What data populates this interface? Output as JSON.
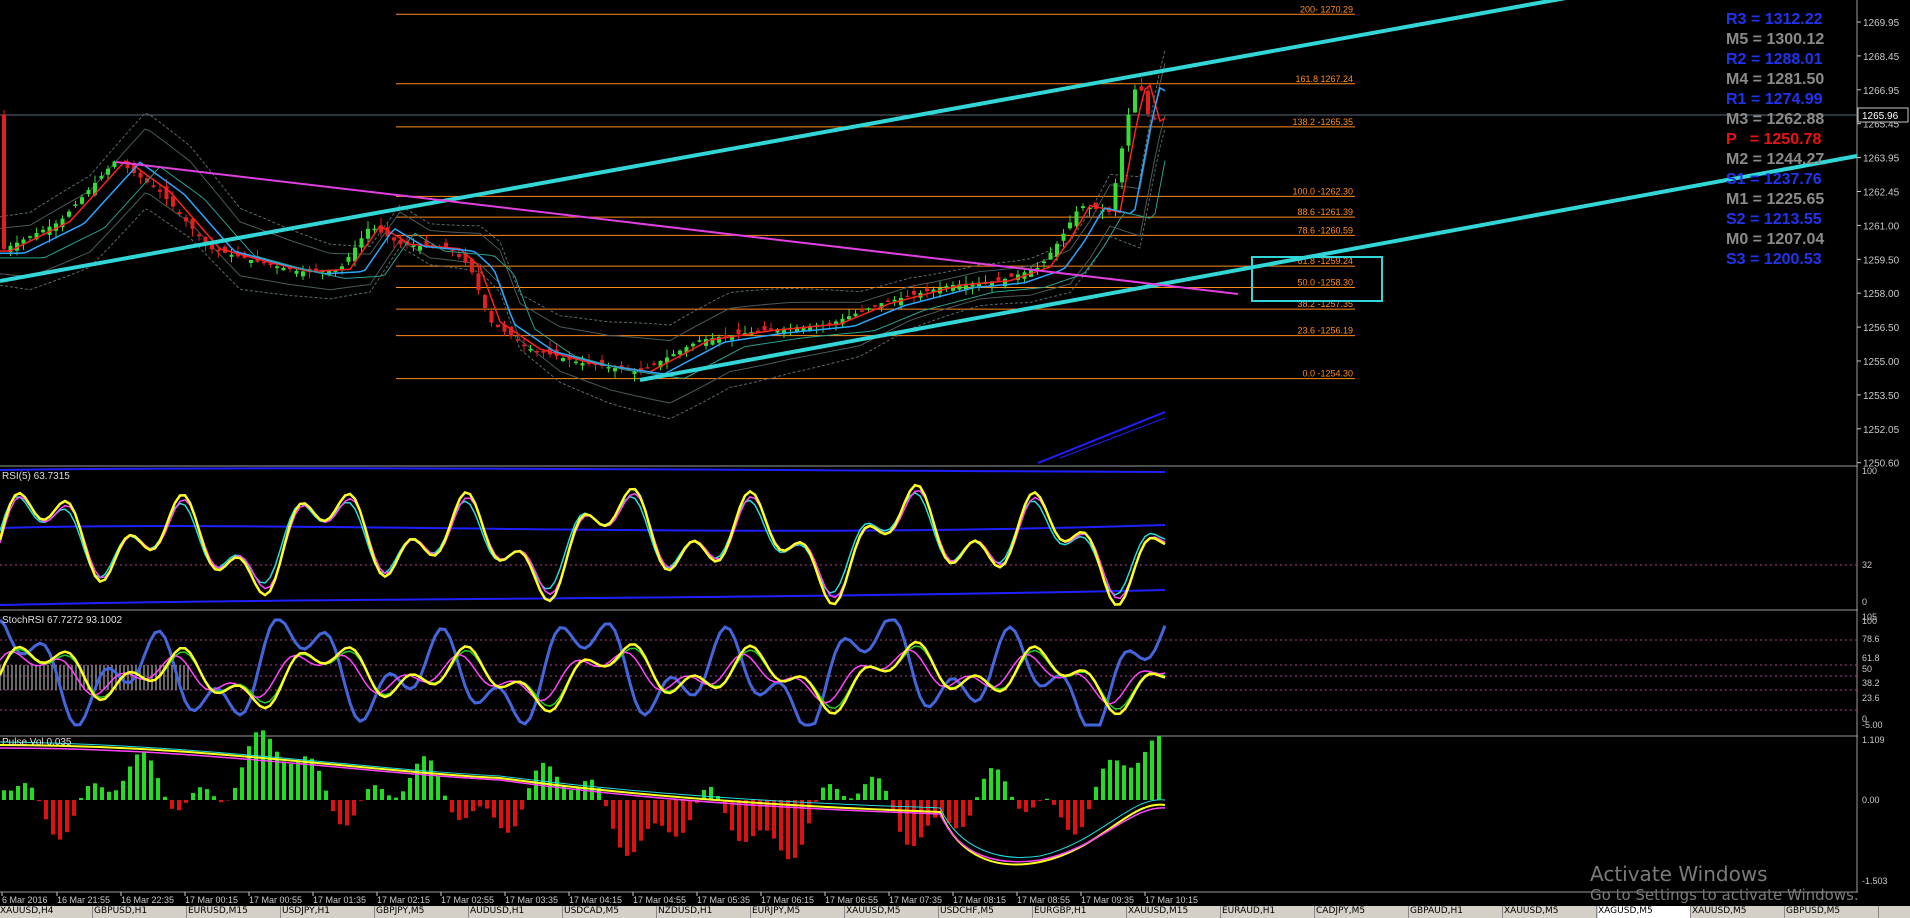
{
  "colors": {
    "background": "#000000",
    "up_candle": "#33dd33",
    "down_candle": "#e02020",
    "fib_line": "#ff8c1a",
    "trend_line": "#33d6d6",
    "magenta_line": "#e040e0",
    "ma_red": "#ff2020",
    "ma_blue": "#2aa6ff",
    "rsi_yellow": "#ffff22",
    "rsi_cyan": "#22dddd",
    "hist_green": "#22dd22",
    "hist_red": "#dd1111",
    "band_blue": "#2020ff",
    "axis_text": "#c8c8c8"
  },
  "price_axis": {
    "labels": [
      "1269.95",
      "1268.45",
      "1266.95",
      "1265.45",
      "1263.95",
      "1262.45",
      "1261.00",
      "1259.50",
      "1258.00",
      "1256.50",
      "1255.00",
      "1253.50",
      "1252.05",
      "1250.60"
    ],
    "current_price": "1265.96"
  },
  "fib_levels": [
    {
      "label": "200- 1270.29",
      "price": 1270.29
    },
    {
      "label": "161.8 1267.24",
      "price": 1267.24
    },
    {
      "label": "138.2 -1265.35",
      "price": 1265.35
    },
    {
      "label": "100.0 -1262.30",
      "price": 1262.3
    },
    {
      "label": "88.6 -1261.39",
      "price": 1261.39
    },
    {
      "label": "78.6 -1260.59",
      "price": 1260.59
    },
    {
      "label": "61.8 -1259.24",
      "price": 1259.24
    },
    {
      "label": "50.0 -1258.30",
      "price": 1258.3
    },
    {
      "label": "38.2 -1257.35",
      "price": 1257.35
    },
    {
      "label": "23.6 -1256.19",
      "price": 1256.19
    },
    {
      "label": "0.0 -1254.30",
      "price": 1254.3
    }
  ],
  "pivots": [
    {
      "label": "R3 = 1312.22",
      "color": "#2233ee"
    },
    {
      "label": "M5 = 1300.12",
      "color": "#8a8a8a"
    },
    {
      "label": "R2 = 1288.01",
      "color": "#2233ee"
    },
    {
      "label": "M4 = 1281.50",
      "color": "#8a8a8a"
    },
    {
      "label": "R1 = 1274.99",
      "color": "#2233ee"
    },
    {
      "label": "M3 = 1262.88",
      "color": "#8a8a8a"
    },
    {
      "label": "P   = 1250.78",
      "color": "#ee1111"
    },
    {
      "label": "M2 = 1244.27",
      "color": "#8a8a8a"
    },
    {
      "label": "S1 = 1237.76",
      "color": "#2233ee"
    },
    {
      "label": "M1 = 1225.65",
      "color": "#8a8a8a"
    },
    {
      "label": "S2 = 1213.55",
      "color": "#2233ee"
    },
    {
      "label": "M0 = 1207.04",
      "color": "#8a8a8a"
    },
    {
      "label": "S3 = 1200.53",
      "color": "#2233ee"
    }
  ],
  "panels": {
    "rsi": {
      "title": "RSI(5) 63.7315",
      "levels": [
        "100",
        "32",
        "0"
      ]
    },
    "stoch": {
      "title": "StochRSI 67.7272 93.1002",
      "levels": [
        "105",
        "100",
        "78.6",
        "61.8",
        "50",
        "38.2",
        "23.6",
        "0",
        "-5.00"
      ]
    },
    "hist": {
      "title": "Pulse Vol 0.035",
      "levels": [
        "1.109",
        "0.00",
        "-1.503"
      ]
    }
  },
  "time_axis": [
    "6 Mar 2016",
    "16 Mar 21:55",
    "16 Mar 22:35",
    "17 Mar 00:15",
    "17 Mar 00:55",
    "17 Mar 01:35",
    "17 Mar 02:15",
    "17 Mar 02:55",
    "17 Mar 03:35",
    "17 Mar 04:15",
    "17 Mar 04:55",
    "17 Mar 05:35",
    "17 Mar 06:15",
    "17 Mar 06:55",
    "17 Mar 07:35",
    "17 Mar 08:15",
    "17 Mar 08:55",
    "17 Mar 09:35",
    "17 Mar 10:15"
  ],
  "watermark": {
    "title": "Activate Windows",
    "subtitle": "Go to Settings to activate Windows."
  },
  "tabs": [
    "XAUUSD,H4",
    "GBPUSD,H1",
    "EURUSD,M15",
    "USDJPY,H1",
    "GBPJPY,M5",
    "AUDUSD,H1",
    "USDCAD,M5",
    "NZDUSD,H1",
    "EURJPY,M5",
    "XAUUSD,M5",
    "USDCHF,M5",
    "EURGBP,H1",
    "XAUUSD,M15",
    "EURAUD,H1",
    "CADJPY,M5",
    "GBPAUD,H1",
    "XAUUSD,M5",
    "XAGUSD,M5",
    "XAUUSD,M5",
    "GBPUSD,M5"
  ]
}
